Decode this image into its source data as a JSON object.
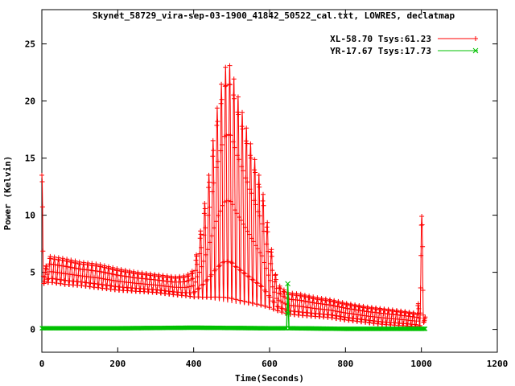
{
  "chart_data": {
    "type": "line",
    "title": "Skynet_58729_vira-sep-03-1900_41842_50522_cal.txt, LOWRES, declatmap",
    "xlabel": "Time(Seconds)",
    "ylabel": "Power (Kelvin)",
    "xlim": [
      0,
      1200
    ],
    "ylim": [
      -2,
      28
    ],
    "xticks": [
      0,
      200,
      400,
      600,
      800,
      1000,
      1200
    ],
    "yticks": [
      0,
      5,
      10,
      15,
      20,
      25
    ],
    "grid": false,
    "legend_position": "top-right",
    "series": [
      {
        "name": "XL-58.70 Tsys:61.23",
        "color": "#ff0000",
        "marker": "plus",
        "oscillation_period": 11,
        "x": [
          0,
          1,
          2,
          5,
          20,
          60,
          100,
          150,
          200,
          250,
          300,
          350,
          380,
          400,
          420,
          440,
          460,
          480,
          490,
          500,
          510,
          520,
          540,
          560,
          580,
          600,
          620,
          640,
          650,
          680,
          720,
          760,
          800,
          850,
          900,
          950,
          990,
          1000,
          1003,
          1006,
          1010
        ],
        "min": [
          4.0,
          4.0,
          4.0,
          4.0,
          4.1,
          3.9,
          3.8,
          3.6,
          3.4,
          3.3,
          3.2,
          3.0,
          2.9,
          2.8,
          2.7,
          2.6,
          2.5,
          2.4,
          2.35,
          2.3,
          2.25,
          2.2,
          2.1,
          2.0,
          1.9,
          1.8,
          1.6,
          1.4,
          1.3,
          1.2,
          1.1,
          1.0,
          0.8,
          0.6,
          0.4,
          0.3,
          0.2,
          0.2,
          0.8,
          0.6,
          0.8
        ],
        "max": [
          13.5,
          13.7,
          13.5,
          5.0,
          6.4,
          6.2,
          5.9,
          5.7,
          5.3,
          5.0,
          4.8,
          4.6,
          4.7,
          5.2,
          9.0,
          13.5,
          19.0,
          22.8,
          23.2,
          23.0,
          21.2,
          20.0,
          17.5,
          15.0,
          12.5,
          8.0,
          4.0,
          3.4,
          3.2,
          3.1,
          2.8,
          2.6,
          2.3,
          2.0,
          1.8,
          1.6,
          1.4,
          9.9,
          9.9,
          1.2,
          1.2
        ]
      },
      {
        "name": "YR-17.67 Tsys:17.73",
        "color": "#00c000",
        "marker": "cross",
        "x": [
          0,
          200,
          400,
          600,
          645,
          648,
          651,
          660,
          800,
          1000,
          1010
        ],
        "y": [
          0.1,
          0.1,
          0.15,
          0.1,
          0.1,
          4.0,
          0.1,
          0.1,
          0.05,
          0.05,
          0.05
        ]
      }
    ]
  }
}
